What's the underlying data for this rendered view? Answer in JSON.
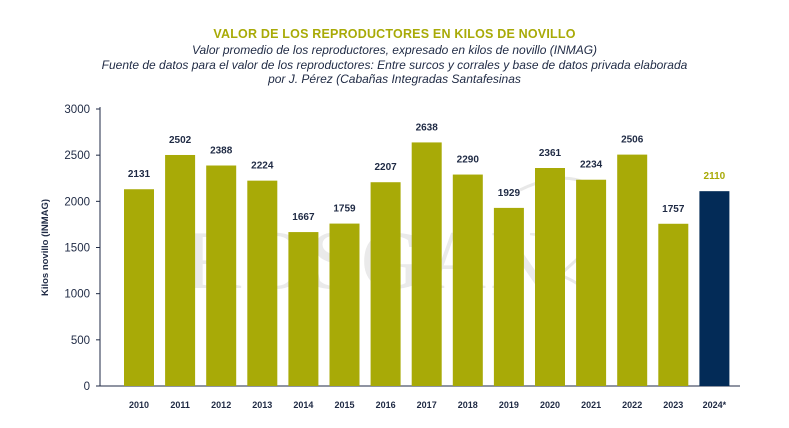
{
  "colors": {
    "bar": "#a8aa07",
    "highlight_bar": "#032b57",
    "title": "#a8aa07",
    "text": "#1f2a44",
    "highlight_label": "#a8aa07",
    "axis": "#1f2a44",
    "watermark": "#d8d8d8"
  },
  "watermark_text": "ROSGAN",
  "chart_data": {
    "type": "bar",
    "title": "VALOR DE LOS REPRODUCTORES EN KILOS DE NOVILLO",
    "subtitle_lines": [
      "Valor promedio de los reproductores, expresado en kilos de novillo (INMAG)",
      "Fuente de datos para el valor de los reproductores: Entre surcos y corrales y base de datos privada elaborada",
      "por J. Pérez (Cabañas Integradas Santafesinas"
    ],
    "categories": [
      "2010",
      "2011",
      "2012",
      "2013",
      "2014",
      "2015",
      "2016",
      "2017",
      "2018",
      "2019",
      "2020",
      "2021",
      "2022",
      "2023",
      "2024*"
    ],
    "values": [
      2131,
      2502,
      2388,
      2224,
      1667,
      1759,
      2207,
      2638,
      2290,
      1929,
      2361,
      2234,
      2506,
      1757,
      2110
    ],
    "highlight_index": 14,
    "xlabel": "",
    "ylabel": "Kilos novillo (INMAG)",
    "ylim": [
      0,
      3000
    ],
    "yticks": [
      0,
      500,
      1000,
      1500,
      2000,
      2500,
      3000
    ],
    "grid": false,
    "data_labels": true
  }
}
